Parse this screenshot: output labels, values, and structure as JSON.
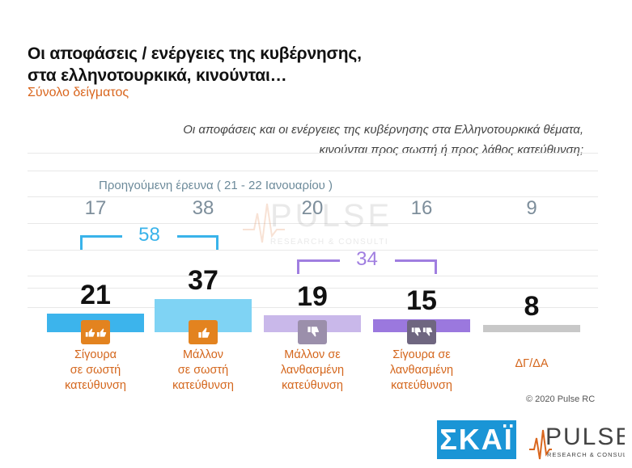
{
  "title_line1": "Οι αποφάσεις / ενέργειες της κυβέρνησης,",
  "title_line2": "στα ελληνοτουρκικά, κινούνται…",
  "subtitle": "Σύνολο δείγματος",
  "question_line1": "Οι αποφάσεις και οι ενέργειες της κυβέρνησης στα Ελληνοτουρκικά θέματα,",
  "question_line2": "κινούνται προς σωστή ή προς λάθος κατεύθυνση;",
  "previous_survey_label": "Προηγούμενη έρευνα   ( 21 - 22  Ιανουαρίου )",
  "copyright": "© 2020 Pulse RC",
  "logo_skai": "ΣΚΑΪ",
  "logo_pulse": "PULSE",
  "logo_pulse_sub": "RESEARCH & CONSULTING",
  "colors": {
    "title": "#111111",
    "subtitle": "#d9661e",
    "label": "#d4661c",
    "previous": "#7d8e9b",
    "positive_bracket": "#39b3ea",
    "negative_bracket": "#a07ee0"
  },
  "chart_data": {
    "type": "bar",
    "categories": [
      "Σίγουρα σε σωστή κατεύθυνση",
      "Μάλλον σε σωστή κατεύθυνση",
      "Μάλλον σε λανθασμένη κατεύθυνση",
      "Σίγουρα σε λανθασμένη κατεύθυνση",
      "ΔΓ/ΔΑ"
    ],
    "category_lines": [
      [
        "Σίγουρα",
        "σε σωστή",
        "κατεύθυνση"
      ],
      [
        "Μάλλον",
        "σε σωστή",
        "κατεύθυνση"
      ],
      [
        "Μάλλον σε",
        "λανθασμένη",
        "κατεύθυνση"
      ],
      [
        "Σίγουρα σε",
        "λανθασμένη",
        "κατεύθυνση"
      ],
      [
        "ΔΓ/ΔΑ"
      ]
    ],
    "series": [
      {
        "values": [
          21,
          37,
          19,
          15,
          8
        ]
      },
      {
        "name": "Προηγούμενη έρευνα ( 21 - 22 Ιανουαρίου )",
        "values": [
          17,
          38,
          20,
          16,
          9
        ]
      }
    ],
    "bar_colors": [
      "#3cb4ec",
      "#7fd3f4",
      "#c9b8ea",
      "#9b78de",
      "#c8c8c8"
    ],
    "icon_colors": [
      "#e3831f",
      "#e3831f",
      "#9b8fab",
      "#6f6680",
      null
    ],
    "icons": [
      "double-thumbs-up-icon",
      "thumbs-up-icon",
      "thumbs-down-icon",
      "double-thumbs-down-icon",
      null
    ],
    "totals": [
      {
        "label": "58",
        "categories": [
          0,
          1
        ],
        "color": "#39b3ea"
      },
      {
        "label": "34",
        "categories": [
          2,
          3
        ],
        "color": "#a07ee0"
      }
    ],
    "ylim": [
      0,
      100
    ]
  }
}
